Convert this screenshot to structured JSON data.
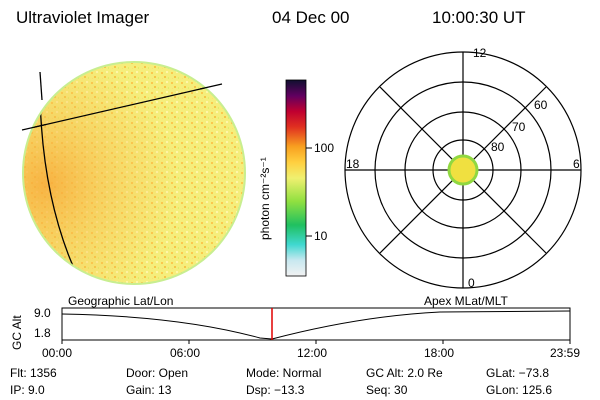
{
  "header": {
    "title": "Ultraviolet Imager",
    "date": "04 Dec 00",
    "time": "10:00:30 UT"
  },
  "colorbar": {
    "label": "photon cm⁻²s⁻¹",
    "ticks": [
      "100",
      "10"
    ]
  },
  "polar_plot": {
    "mlt_labels": {
      "top": "12",
      "left": "18",
      "right": "6",
      "bottom": "0"
    },
    "lat_labels": [
      "60",
      "70",
      "80"
    ]
  },
  "timeline": {
    "ylabel": "GC Alt",
    "yticks": [
      "9.0",
      "1.8"
    ],
    "left_label": "Geographic Lat/Lon",
    "right_label": "Apex MLat/MLT",
    "xticks": [
      "00:00",
      "06:00",
      "12:00",
      "18:00",
      "23:59"
    ]
  },
  "info": {
    "filter": "Flt: 1356",
    "ip": "IP: 9.0",
    "door": "Door: Open",
    "gain": "Gain: 13",
    "mode": "Mode: Normal",
    "dsp": "Dsp:  −13.3",
    "gc_alt": "GC Alt: 2.0 Re",
    "seq": "Seq: 30",
    "glat": "GLat:  −73.8",
    "glon": "GLon: 125.6"
  },
  "colors": {
    "disk_main": "#f7f08a",
    "disk_warm": "#f9b040",
    "red_marker": "#e00000"
  }
}
